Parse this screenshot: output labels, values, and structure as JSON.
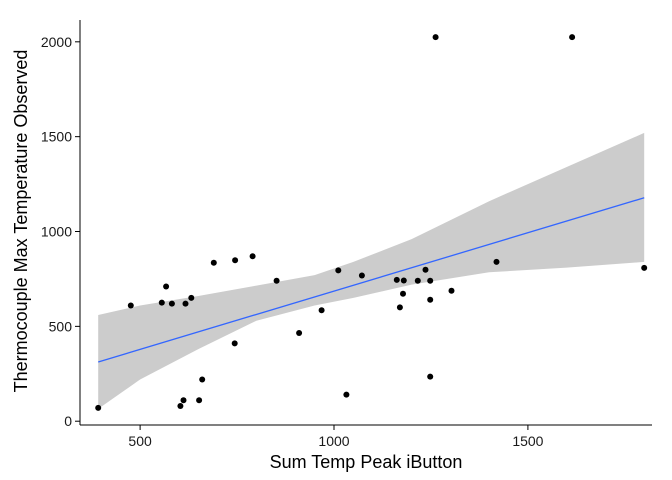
{
  "chart_data": {
    "type": "scatter",
    "title": "",
    "xlabel": "Sum Temp Peak iButton",
    "ylabel": "Thermocouple Max Temperature Observed",
    "xlim": [
      345,
      1820
    ],
    "ylim": [
      -20,
      2115
    ],
    "x_ticks": [
      500,
      1000,
      1500
    ],
    "y_ticks": [
      0,
      500,
      1000,
      1500,
      2000
    ],
    "grid": false,
    "legend": "none",
    "points": [
      {
        "x": 392,
        "y": 70
      },
      {
        "x": 476,
        "y": 610
      },
      {
        "x": 556,
        "y": 625
      },
      {
        "x": 567,
        "y": 710
      },
      {
        "x": 582,
        "y": 620
      },
      {
        "x": 604,
        "y": 80
      },
      {
        "x": 612,
        "y": 110
      },
      {
        "x": 617,
        "y": 620
      },
      {
        "x": 632,
        "y": 650
      },
      {
        "x": 652,
        "y": 110
      },
      {
        "x": 660,
        "y": 220
      },
      {
        "x": 690,
        "y": 835
      },
      {
        "x": 744,
        "y": 410
      },
      {
        "x": 745,
        "y": 848
      },
      {
        "x": 790,
        "y": 870
      },
      {
        "x": 852,
        "y": 740
      },
      {
        "x": 910,
        "y": 465
      },
      {
        "x": 968,
        "y": 585
      },
      {
        "x": 1011,
        "y": 795
      },
      {
        "x": 1032,
        "y": 140
      },
      {
        "x": 1072,
        "y": 768
      },
      {
        "x": 1162,
        "y": 745
      },
      {
        "x": 1170,
        "y": 600
      },
      {
        "x": 1178,
        "y": 672
      },
      {
        "x": 1180,
        "y": 742
      },
      {
        "x": 1216,
        "y": 740
      },
      {
        "x": 1236,
        "y": 798
      },
      {
        "x": 1248,
        "y": 235
      },
      {
        "x": 1248,
        "y": 640
      },
      {
        "x": 1248,
        "y": 740
      },
      {
        "x": 1262,
        "y": 2025
      },
      {
        "x": 1303,
        "y": 688
      },
      {
        "x": 1419,
        "y": 840
      },
      {
        "x": 1614,
        "y": 2025
      },
      {
        "x": 1800,
        "y": 808
      }
    ],
    "fit_line": {
      "x": [
        392,
        1800
      ],
      "y": [
        312,
        1178
      ]
    },
    "confidence_band": {
      "x": [
        392,
        500,
        650,
        800,
        950,
        1050,
        1200,
        1400,
        1600,
        1800
      ],
      "upper": [
        560,
        610,
        660,
        715,
        770,
        840,
        960,
        1160,
        1340,
        1520
      ],
      "lower": [
        65,
        220,
        380,
        530,
        610,
        650,
        720,
        785,
        810,
        840
      ]
    },
    "colors": {
      "point": "#000000",
      "fit_line": "#3366ff",
      "band": "#cccccc"
    }
  }
}
